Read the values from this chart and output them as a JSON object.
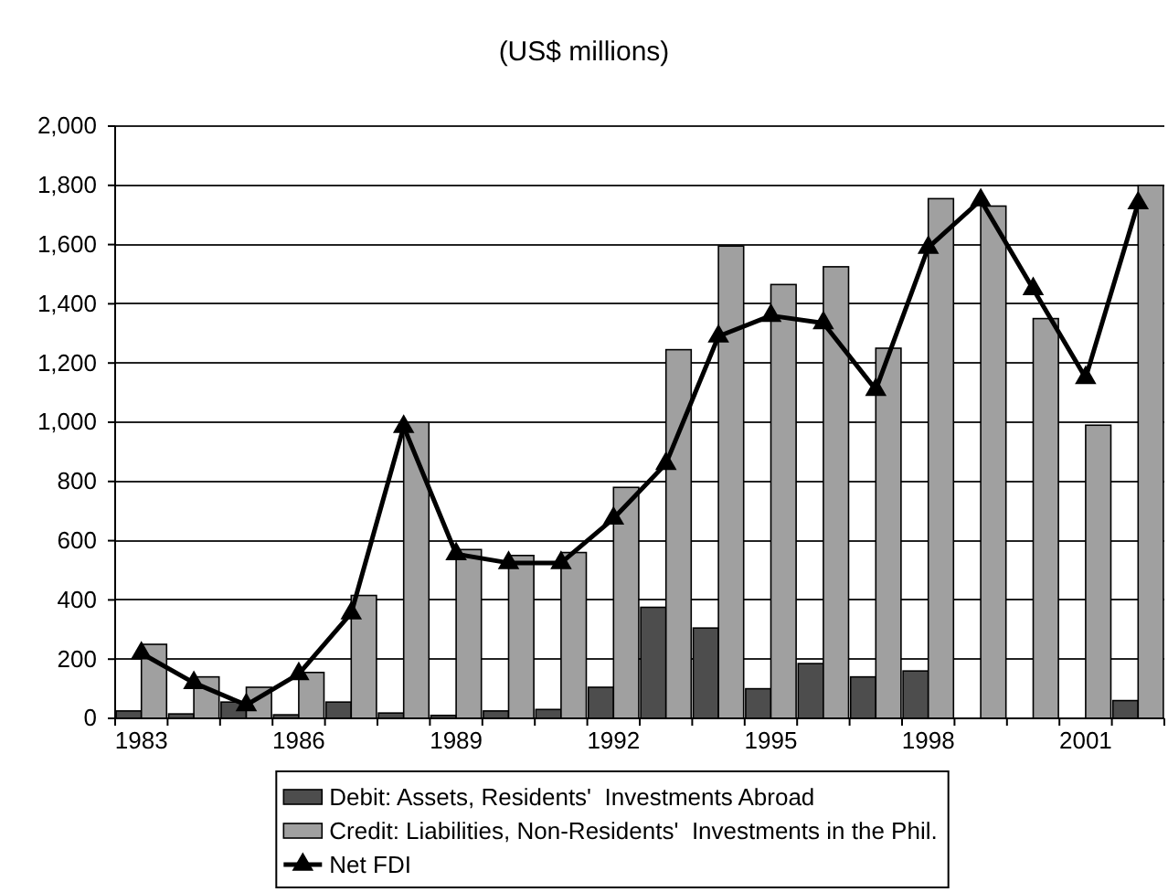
{
  "chart_data": {
    "type": "bar",
    "title": "(US$ millions)",
    "categories": [
      "1983",
      null,
      null,
      "1986",
      null,
      null,
      "1989",
      null,
      null,
      "1992",
      null,
      null,
      "1995",
      null,
      null,
      "1998",
      null,
      null,
      "2001",
      null
    ],
    "series": [
      {
        "name": "Debit: Assets, Residents'  Investments Abroad",
        "color": "#4d4d4d",
        "values": [
          25,
          15,
          55,
          12,
          55,
          18,
          10,
          25,
          30,
          105,
          375,
          305,
          100,
          185,
          140,
          160,
          null,
          null,
          null,
          60
        ]
      },
      {
        "name": "Credit: Liabilities, Non-Residents'  Investments in the Phil.",
        "color": "#a0a0a0",
        "values": [
          250,
          140,
          105,
          155,
          415,
          1000,
          570,
          550,
          560,
          780,
          1245,
          1595,
          1465,
          1525,
          1250,
          1755,
          1730,
          1350,
          990,
          1800
        ]
      },
      {
        "name": "Net FDI",
        "type": "line",
        "color": "#000000",
        "values": [
          220,
          120,
          45,
          150,
          355,
          985,
          555,
          525,
          525,
          675,
          860,
          1290,
          1360,
          1335,
          1110,
          1590,
          1750,
          1450,
          1150,
          1740
        ]
      }
    ],
    "ylim": [
      0,
      2000
    ],
    "yticks": [
      0,
      200,
      400,
      600,
      800,
      {
        "value": 1000,
        "label": "1,000"
      },
      {
        "value": 1200,
        "label": "1,200"
      },
      {
        "value": 1400,
        "label": "1,400"
      },
      {
        "value": 1600,
        "label": "1,600"
      },
      {
        "value": 1800,
        "label": "1,800"
      },
      {
        "value": 2000,
        "label": "2,000"
      }
    ],
    "grid": "y",
    "legend": "bottom",
    "marker": "triangle",
    "line_style": "solid"
  }
}
